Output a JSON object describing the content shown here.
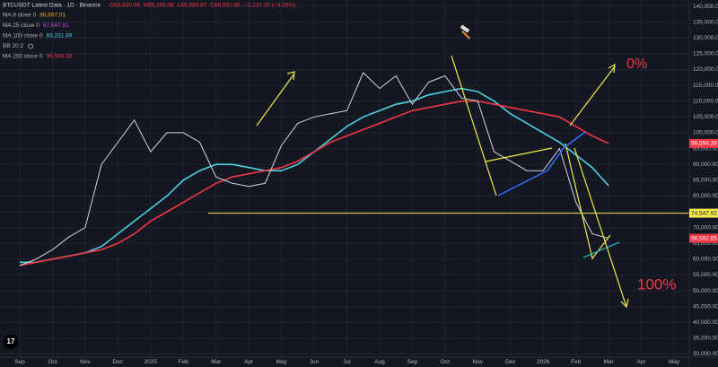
{
  "chart_data": {
    "type": "line",
    "title": "BTCUSDT Latest Data · 1D · Binance",
    "ohlc": [
      "O68,830.06",
      "H69,258.08",
      "L66,589.87",
      "C66,592.85",
      "−2,237.20 (−3.25%)"
    ],
    "categories": [
      "Sep",
      null,
      "Oct",
      null,
      "Nov",
      null,
      "Dec",
      null,
      "2025",
      null,
      "Feb",
      null,
      "Mar",
      null,
      "Apr",
      null,
      "May",
      null,
      "Jun",
      null,
      "Jul",
      null,
      "Aug",
      null,
      "Sep",
      null,
      "Oct",
      null,
      "Nov",
      null,
      "Dec",
      null,
      "2026",
      null,
      "Feb",
      null,
      "Mar",
      null,
      "Apr",
      null,
      "May"
    ],
    "price": {
      "color": "#d1d4dc",
      "values": [
        58000,
        60000,
        63000,
        67000,
        70000,
        90000,
        97000,
        104000,
        94000,
        100000,
        100000,
        97000,
        86000,
        84000,
        83000,
        84000,
        96000,
        103000,
        105000,
        106000,
        107000,
        119000,
        114000,
        118000,
        109000,
        116000,
        118000,
        111000,
        110000,
        94000,
        91000,
        88000,
        88000,
        95000,
        78000,
        68000,
        66592.85,
        null,
        null,
        null,
        null
      ]
    },
    "legend": [
      {
        "name": "MA 8 close 0",
        "last": "66,697.01",
        "color": "#f5a623"
      },
      {
        "name": "MA 25 close 0",
        "last": "67,647.81",
        "color": "#c04cd6"
      },
      {
        "name": "MA 100 close 0",
        "last": "83,231.89",
        "color": "#4dd0e1"
      },
      {
        "name": "BB 20 2",
        "color": "#b2b5be"
      },
      {
        "name": "MA 200 close 0",
        "last": "96,594.38",
        "color": "#f23645"
      }
    ],
    "series": [
      {
        "name": "MA 100 close 0",
        "color": "#4dd0e1",
        "values": [
          59000,
          59000,
          60000,
          61000,
          62000,
          64000,
          68000,
          72000,
          76000,
          80000,
          85000,
          88000,
          90000,
          90000,
          89000,
          88000,
          88000,
          90000,
          94000,
          98000,
          102000,
          105000,
          107000,
          109000,
          110000,
          112000,
          113000,
          114000,
          113000,
          110000,
          106000,
          103000,
          100000,
          97000,
          93000,
          89000,
          83231.89,
          null,
          null,
          null,
          null
        ]
      },
      {
        "name": "MA 200 close 0",
        "color": "#f23645",
        "values": [
          58000,
          59000,
          60000,
          61000,
          62000,
          63000,
          65000,
          68000,
          72000,
          75000,
          78000,
          81000,
          84000,
          86000,
          87000,
          88000,
          89000,
          91000,
          94000,
          97000,
          99000,
          101000,
          103000,
          105000,
          107000,
          108000,
          109000,
          110000,
          110000,
          109000,
          108000,
          107000,
          106000,
          105000,
          102000,
          99000,
          96594.38,
          null,
          null,
          null,
          null
        ]
      }
    ],
    "price_tags": [
      {
        "value": 96594.38,
        "label": "96,594.38",
        "color": "#f23645"
      },
      {
        "value": 74547.92,
        "label": "74,547.92",
        "color": "#f5e94b"
      },
      {
        "value": 66592.85,
        "label": "66,592.85",
        "color": "#f23645"
      }
    ],
    "hline": {
      "value": 74547.92,
      "color": "#f5e94b"
    },
    "annotations": [
      "0%",
      "100%"
    ],
    "ylim": [
      29000,
      142000
    ],
    "yticks": [
      {
        "value": 30000,
        "label": "30,000.00"
      },
      {
        "value": 35000,
        "label": "35,000.00"
      },
      {
        "value": 40000,
        "label": "40,000.00"
      },
      {
        "value": 45000,
        "label": "45,000.00"
      },
      {
        "value": 50000,
        "label": "50,000.00"
      },
      {
        "value": 55000,
        "label": "55,000.00"
      },
      {
        "value": 60000,
        "label": "60,000.00"
      },
      {
        "value": 65000,
        "label": "65,000.00"
      },
      {
        "value": 70000,
        "label": "70,000.00"
      },
      {
        "value": 75000,
        "label": "75,000.00"
      },
      {
        "value": 80000,
        "label": "80,000.00"
      },
      {
        "value": 85000,
        "label": "85,000.00"
      },
      {
        "value": 90000,
        "label": "90,000.00"
      },
      {
        "value": 95000,
        "label": "95,000.00"
      },
      {
        "value": 100000,
        "label": "100,000.00"
      },
      {
        "value": 105000,
        "label": "105,000.00"
      },
      {
        "value": 110000,
        "label": "110,000.00"
      },
      {
        "value": 115000,
        "label": "115,000.00"
      },
      {
        "value": 120000,
        "label": "120,000.00"
      },
      {
        "value": 125000,
        "label": "125,000.00"
      },
      {
        "value": 130000,
        "label": "130,000.00"
      },
      {
        "value": 135000,
        "label": "135,000.00"
      },
      {
        "value": 140000,
        "label": "140,000.00"
      }
    ],
    "grid": true
  }
}
